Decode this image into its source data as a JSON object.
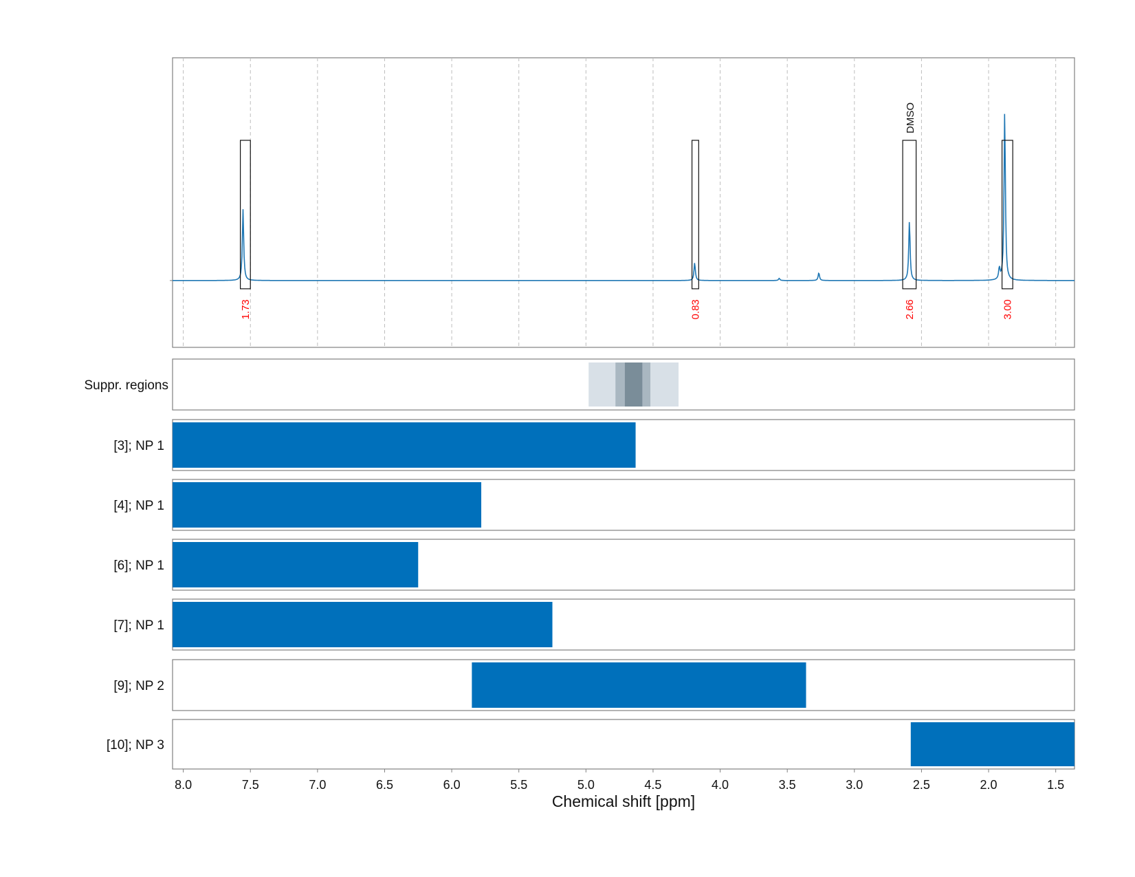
{
  "chart_data": {
    "type": "nmr-spectrum-with-range-bars",
    "xlabel": "Chemical shift [ppm]",
    "x_range_ppm": [
      8.08,
      1.36
    ],
    "x_ticks": [
      8.0,
      7.5,
      7.0,
      6.5,
      6.0,
      5.5,
      5.0,
      4.5,
      4.0,
      3.5,
      3.0,
      2.5,
      2.0,
      1.5
    ],
    "x_tick_labels": [
      "8.0",
      "7.5",
      "7.0",
      "6.5",
      "6.0",
      "5.5",
      "5.0",
      "4.5",
      "4.0",
      "3.5",
      "3.0",
      "2.5",
      "2.0",
      "1.5"
    ],
    "spectrum": {
      "line_color": "#1f77b4",
      "baseline_y": 0.0,
      "y_range": [
        -0.6,
        2.0
      ],
      "peaks": [
        {
          "ppm": 7.555,
          "height": 0.64
        },
        {
          "ppm": 4.19,
          "height": 0.16
        },
        {
          "ppm": 3.56,
          "height": 0.02
        },
        {
          "ppm": 3.265,
          "height": 0.07
        },
        {
          "ppm": 2.59,
          "height": 0.53
        },
        {
          "ppm": 1.88,
          "height": 1.52
        },
        {
          "ppm": 1.92,
          "height": 0.1
        }
      ]
    },
    "integrals": [
      {
        "ppm_from": 7.575,
        "ppm_to": 7.5,
        "label": "1.73"
      },
      {
        "ppm_from": 4.21,
        "ppm_to": 4.16,
        "label": "0.83"
      },
      {
        "ppm_from": 2.64,
        "ppm_to": 2.54,
        "label": "2.66",
        "annotation": "DMSO"
      },
      {
        "ppm_from": 1.9,
        "ppm_to": 1.82,
        "label": "3.00"
      }
    ],
    "integral_label_color": "#ff0000",
    "suppression": {
      "label": "Suppr. regions",
      "bands": [
        {
          "ppm_from": 4.98,
          "ppm_to": 4.31,
          "color": "#d8e0e7"
        },
        {
          "ppm_from": 4.78,
          "ppm_to": 4.52,
          "color": "#a9b7c1"
        },
        {
          "ppm_from": 4.71,
          "ppm_to": 4.58,
          "color": "#7a8d99"
        }
      ]
    },
    "bar_color": "#0070bb",
    "ranges": [
      {
        "label": "[3]; NP 1",
        "ppm_from": 8.08,
        "ppm_to": 4.63
      },
      {
        "label": "[4]; NP 1",
        "ppm_from": 8.08,
        "ppm_to": 5.78
      },
      {
        "label": "[6]; NP 1",
        "ppm_from": 8.08,
        "ppm_to": 6.25
      },
      {
        "label": "[7]; NP 1",
        "ppm_from": 8.08,
        "ppm_to": 5.25
      },
      {
        "label": "[9]; NP 2",
        "ppm_from": 5.85,
        "ppm_to": 3.36
      },
      {
        "label": "[10]; NP 3",
        "ppm_from": 2.58,
        "ppm_to": 1.36
      }
    ]
  }
}
